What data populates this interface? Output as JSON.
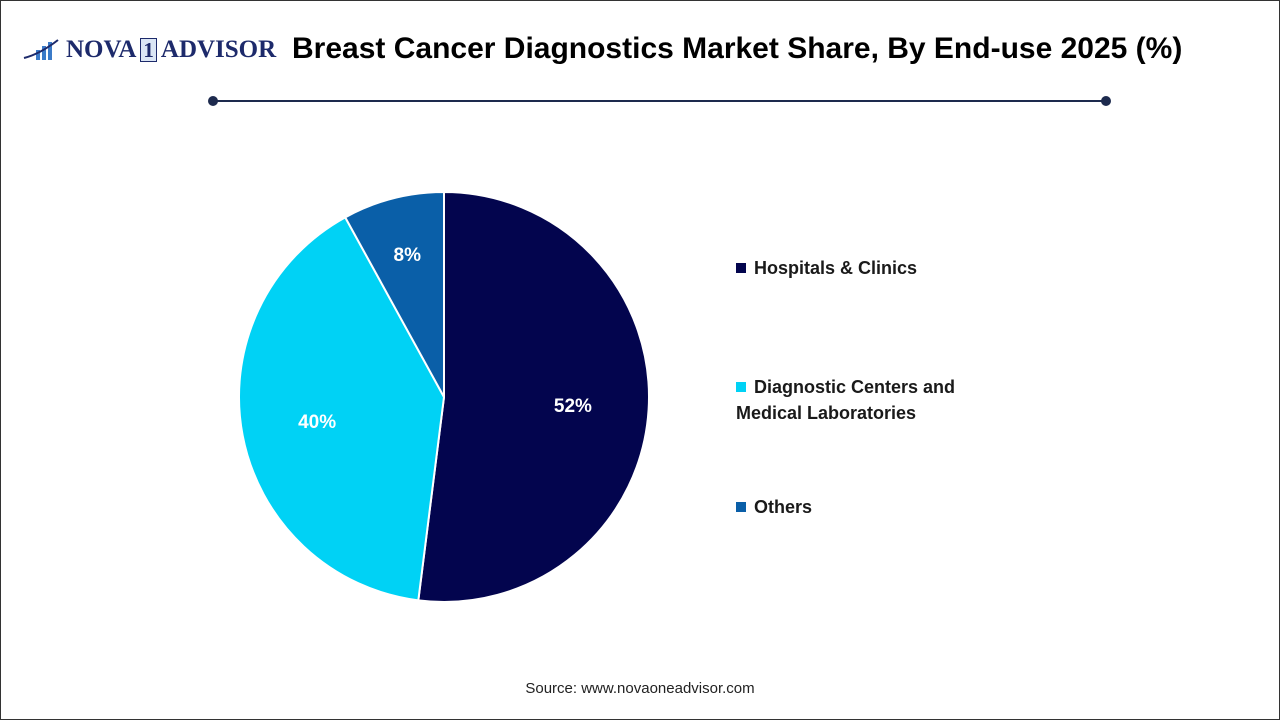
{
  "logo": {
    "text_a": "NOVA",
    "text_b": "1",
    "text_c": "ADVISOR"
  },
  "source": "Source: www.novaoneadvisor.com",
  "chart_data": {
    "type": "pie",
    "title": "Breast Cancer Diagnostics Market Share, By End-use 2025 (%)",
    "categories": [
      "Hospitals & Clinics",
      "Diagnostic Centers and Medical Laboratories",
      "Others"
    ],
    "values": [
      52,
      40,
      8
    ],
    "labels": [
      "52%",
      "40%",
      "8%"
    ],
    "colors": [
      "#03054e",
      "#00d2f5",
      "#0a5fa8"
    ],
    "legend": "right",
    "start_angle": "top, clockwise"
  }
}
